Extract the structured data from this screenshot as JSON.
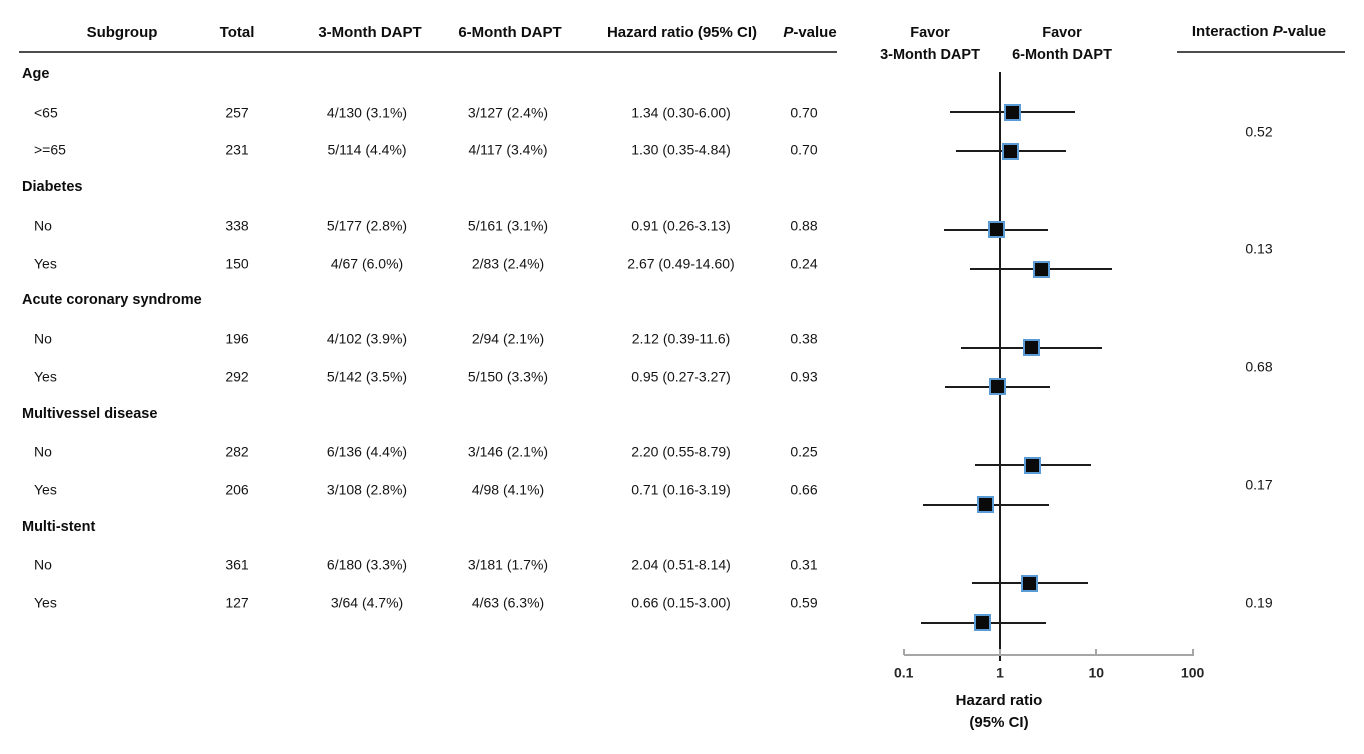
{
  "header": {
    "subgroup": "Subgroup",
    "total": "Total",
    "dapt3": "3-Month DAPT",
    "dapt6": "6-Month DAPT",
    "hazard_ratio": "Hazard ratio (95% CI)",
    "p_italic": "P",
    "p_suffix": "-value",
    "favor_left_line1": "Favor",
    "favor_left_line2": "3-Month DAPT",
    "favor_right_line1": "Favor",
    "favor_right_line2": "6-Month DAPT",
    "interaction_prefix": "Interaction ",
    "interaction_p_italic": "P",
    "interaction_suffix": "-value"
  },
  "chart_data": {
    "type": "forest",
    "x_axis": {
      "scale": "log",
      "min": 0.1,
      "max": 100,
      "ticks": [
        "0.1",
        "1",
        "10",
        "100"
      ],
      "reference_line": 1,
      "title_line1": "Hazard ratio",
      "title_line2": "(95% CI)"
    },
    "groups": [
      {
        "label": "Age",
        "interaction_p": "0.52",
        "rows": [
          {
            "label": "<65",
            "total": "257",
            "events_3m": "4/130 (3.1%)",
            "events_6m": "3/127 (2.4%)",
            "hr_text": "1.34 (0.30-6.00)",
            "p": "0.70",
            "hr": 1.34,
            "ci": [
              0.3,
              6.0
            ]
          },
          {
            "label": ">=65",
            "total": "231",
            "events_3m": "5/114 (4.4%)",
            "events_6m": "4/117 (3.4%)",
            "hr_text": "1.30 (0.35-4.84)",
            "p": "0.70",
            "hr": 1.3,
            "ci": [
              0.35,
              4.84
            ]
          }
        ]
      },
      {
        "label": "Diabetes",
        "interaction_p": "0.13",
        "rows": [
          {
            "label": "No",
            "total": "338",
            "events_3m": "5/177 (2.8%)",
            "events_6m": "5/161 (3.1%)",
            "hr_text": "0.91 (0.26-3.13)",
            "p": "0.88",
            "hr": 0.91,
            "ci": [
              0.26,
              3.13
            ]
          },
          {
            "label": "Yes",
            "total": "150",
            "events_3m": "4/67 (6.0%)",
            "events_6m": "2/83 (2.4%)",
            "hr_text": "2.67 (0.49-14.60)",
            "p": "0.24",
            "hr": 2.67,
            "ci": [
              0.49,
              14.6
            ]
          }
        ]
      },
      {
        "label": "Acute coronary syndrome",
        "interaction_p": "0.68",
        "rows": [
          {
            "label": "No",
            "total": "196",
            "events_3m": "4/102 (3.9%)",
            "events_6m": "2/94 (2.1%)",
            "hr_text": "2.12 (0.39-11.6)",
            "p": "0.38",
            "hr": 2.12,
            "ci": [
              0.39,
              11.6
            ]
          },
          {
            "label": "Yes",
            "total": "292",
            "events_3m": "5/142 (3.5%)",
            "events_6m": "5/150 (3.3%)",
            "hr_text": "0.95 (0.27-3.27)",
            "p": "0.93",
            "hr": 0.95,
            "ci": [
              0.27,
              3.27
            ]
          }
        ]
      },
      {
        "label": "Multivessel disease",
        "interaction_p": "0.17",
        "rows": [
          {
            "label": "No",
            "total": "282",
            "events_3m": "6/136 (4.4%)",
            "events_6m": "3/146 (2.1%)",
            "hr_text": "2.20 (0.55-8.79)",
            "p": "0.25",
            "hr": 2.2,
            "ci": [
              0.55,
              8.79
            ]
          },
          {
            "label": "Yes",
            "total": "206",
            "events_3m": "3/108 (2.8%)",
            "events_6m": "4/98 (4.1%)",
            "hr_text": "0.71 (0.16-3.19)",
            "p": "0.66",
            "hr": 0.71,
            "ci": [
              0.16,
              3.19
            ]
          }
        ]
      },
      {
        "label": "Multi-stent",
        "interaction_p": "0.19",
        "rows": [
          {
            "label": "No",
            "total": "361",
            "events_3m": "6/180 (3.3%)",
            "events_6m": "3/181 (1.7%)",
            "hr_text": "2.04 (0.51-8.14)",
            "p": "0.31",
            "hr": 2.04,
            "ci": [
              0.51,
              8.14
            ]
          },
          {
            "label": "Yes",
            "total": "127",
            "events_3m": "3/64 (4.7%)",
            "events_6m": "4/63 (6.3%)",
            "hr_text": "0.66 (0.15-3.00)",
            "p": "0.59",
            "hr": 0.66,
            "ci": [
              0.15,
              3.0
            ]
          }
        ]
      }
    ]
  },
  "colors": {
    "marker_fill": "#0a0a0a",
    "marker_border": "#5b9bd5",
    "axis_line": "#a6a6a6",
    "text": "#141414",
    "rule": "#4d4d4d"
  }
}
